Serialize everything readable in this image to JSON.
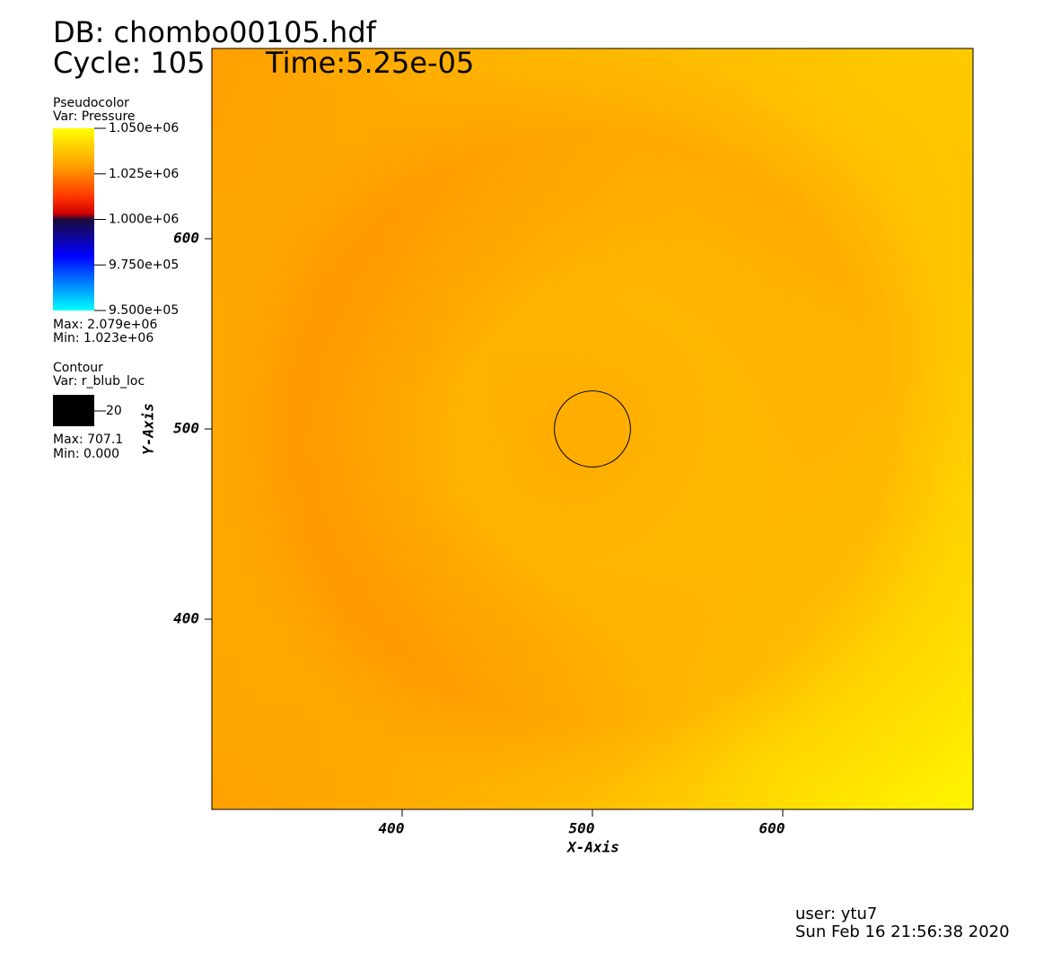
{
  "chart_data": {
    "type": "pseudocolor",
    "title": "DB: chombo00105.hdf",
    "cycle": "Cycle: 105",
    "time": "Time:5.25e-05",
    "xlabel": "X-Axis",
    "ylabel": "Y-Axis",
    "xlim": [
      300,
      700
    ],
    "ylim": [
      300,
      700
    ],
    "xticks": [
      400,
      500,
      600
    ],
    "yticks": [
      400,
      500,
      600
    ],
    "legend": {
      "plot": "Pseudocolor",
      "var": "Var: Pressure",
      "colorbar_lim": [
        950000,
        1050000
      ],
      "colorbar_ticks": [
        {
          "value": 950000,
          "label": "9.500e+05"
        },
        {
          "value": 975000,
          "label": "9.750e+05"
        },
        {
          "value": 1000000,
          "label": "1.000e+06"
        },
        {
          "value": 1025000,
          "label": "1.025e+06"
        },
        {
          "value": 1050000,
          "label": "1.050e+06"
        }
      ],
      "max": "Max: 2.079e+06",
      "min": "Min:  1.023e+06"
    },
    "contour": {
      "plot": "Contour",
      "var": "Var: r_blub_loc",
      "levels": [
        20
      ],
      "max": "Max: 707.1",
      "min": "Min: 0.000"
    },
    "user": "user: ytu7",
    "date": "Sun Feb 16 21:56:38 2020"
  }
}
